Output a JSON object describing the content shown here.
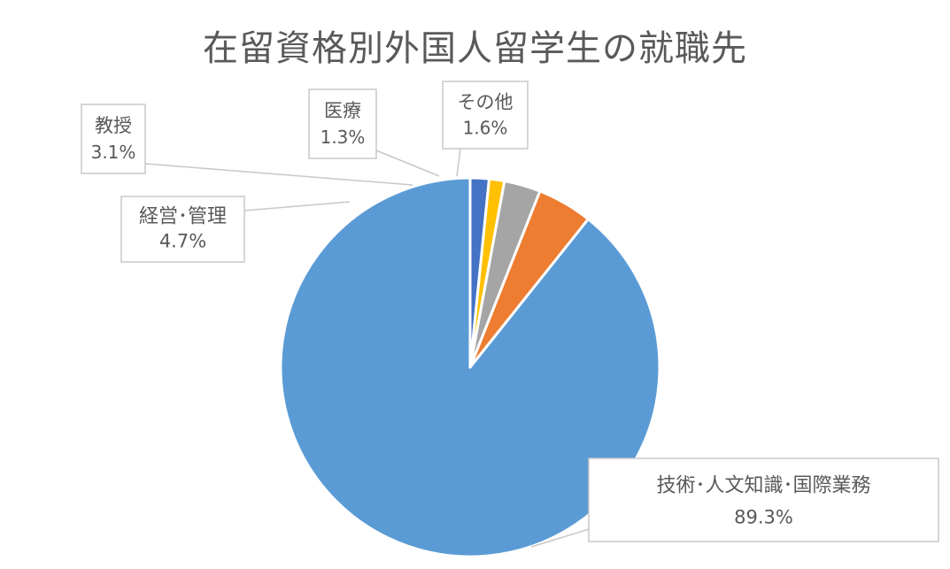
{
  "chart_data": {
    "type": "pie",
    "title": "在留資格別外国人留学生の就職先",
    "start_angle_deg": 0,
    "direction": "counterclockwise",
    "slices": [
      {
        "label": "技術･人文知識･国際業務",
        "value": 89.3,
        "pct_label": "89.3%",
        "color": "#5B9BD5"
      },
      {
        "label": "経営･管理",
        "value": 4.7,
        "pct_label": "4.7%",
        "color": "#ED7D31"
      },
      {
        "label": "教授",
        "value": 3.1,
        "pct_label": "3.1%",
        "color": "#A5A5A5"
      },
      {
        "label": "医療",
        "value": 1.3,
        "pct_label": "1.3%",
        "color": "#FFC000"
      },
      {
        "label": "その他",
        "value": 1.6,
        "pct_label": "1.6%",
        "color": "#4472C4"
      }
    ]
  }
}
